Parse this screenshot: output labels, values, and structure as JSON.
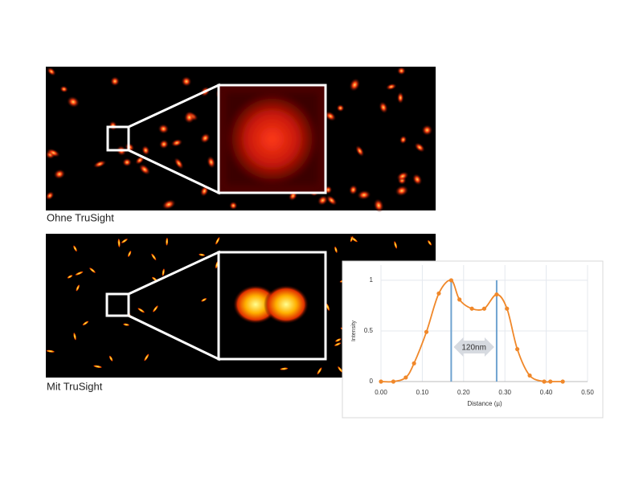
{
  "images": [
    {
      "caption": "Ohne TruSight"
    },
    {
      "caption": "Mit TruSight"
    }
  ],
  "chart_data": {
    "type": "line",
    "x": [
      0,
      0.03,
      0.06,
      0.08,
      0.11,
      0.14,
      0.17,
      0.19,
      0.22,
      0.25,
      0.28,
      0.305,
      0.33,
      0.36,
      0.395,
      0.41,
      0.44
    ],
    "series": [
      {
        "name": "Intensity",
        "color": "#f0882a",
        "values": [
          0,
          0,
          0.04,
          0.18,
          0.49,
          0.87,
          1.0,
          0.81,
          0.72,
          0.72,
          0.86,
          0.72,
          0.32,
          0.06,
          0,
          0,
          0
        ]
      }
    ],
    "x_label": "Distance (µ)",
    "y_label": "Intensity",
    "xlim": [
      0,
      0.5
    ],
    "xticks": [
      {
        "value": 0,
        "label": "0.00"
      },
      {
        "value": 0.1,
        "label": "0.10"
      },
      {
        "value": 0.2,
        "label": "0.20"
      },
      {
        "value": 0.3,
        "label": "0.30"
      },
      {
        "value": 0.4,
        "label": "0.40"
      },
      {
        "value": 0.5,
        "label": "0.50"
      }
    ],
    "ylim": [
      0,
      1.15
    ],
    "yticks": [
      0,
      0.5,
      1
    ],
    "grid": true,
    "markers": [
      0.17,
      0.28
    ],
    "marker_color": "#6fa3d0",
    "annotation": "120nm"
  }
}
